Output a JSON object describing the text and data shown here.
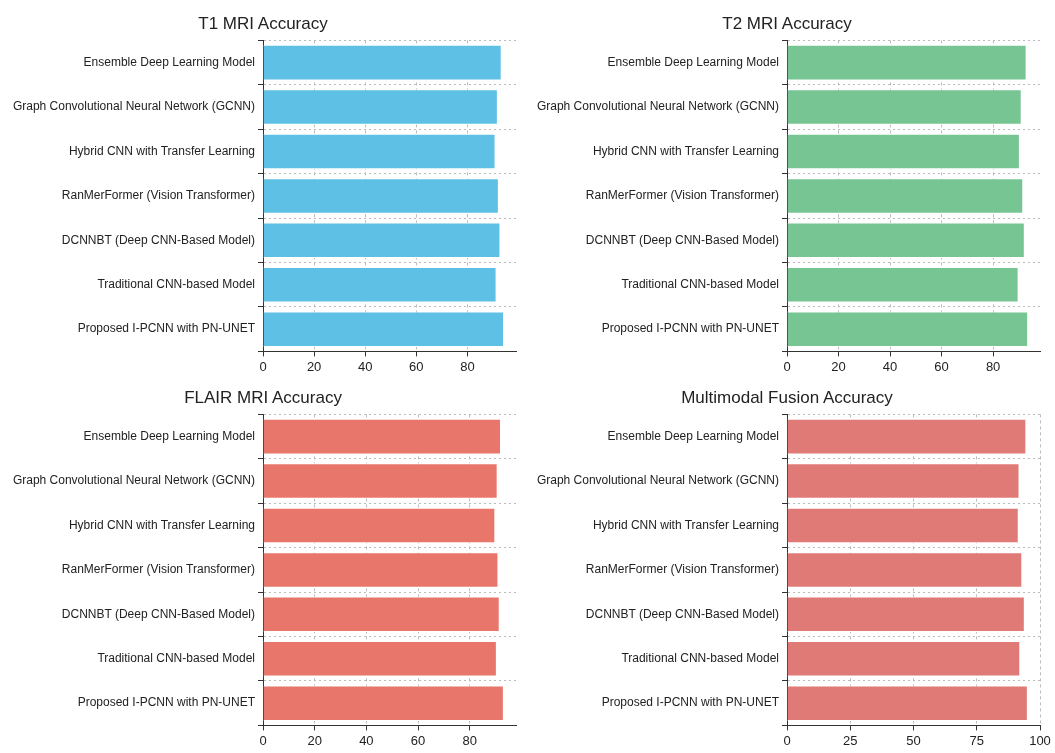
{
  "chart_data": [
    {
      "type": "bar",
      "orientation": "horizontal",
      "title": "T1 MRI Accuracy",
      "categories": [
        "Ensemble Deep Learning Model",
        "Graph Convolutional Neural Network (GCNN)",
        "Hybrid CNN with Transfer Learning",
        "RanMerFormer (Vision Transformer)",
        "DCNNBT (Deep CNN-Based Model)",
        "Traditional CNN-based Model",
        "Proposed I-PCNN with PN-UNET"
      ],
      "values": [
        93.4,
        91.9,
        91.0,
        92.3,
        92.9,
        91.4,
        94.3
      ],
      "color": "#5dc0e4",
      "xlim": [
        0,
        99
      ],
      "xticks": [
        0,
        20,
        40,
        60,
        80
      ],
      "grid": true
    },
    {
      "type": "bar",
      "orientation": "horizontal",
      "title": "T2 MRI Accuracy",
      "categories": [
        "Ensemble Deep Learning Model",
        "Graph Convolutional Neural Network (GCNN)",
        "Hybrid CNN with Transfer Learning",
        "RanMerFormer (Vision Transformer)",
        "DCNNBT (Deep CNN-Based Model)",
        "Traditional CNN-based Model",
        "Proposed I-PCNN with PN-UNET"
      ],
      "values": [
        93.0,
        91.1,
        90.4,
        91.7,
        92.3,
        89.9,
        93.6
      ],
      "color": "#77c592",
      "xlim": [
        0,
        98.2
      ],
      "xticks": [
        0,
        20,
        40,
        60,
        80
      ],
      "grid": true
    },
    {
      "type": "bar",
      "orientation": "horizontal",
      "title": "FLAIR MRI Accuracy",
      "categories": [
        "Ensemble Deep Learning Model",
        "Graph Convolutional Neural Network (GCNN)",
        "Hybrid CNN with Transfer Learning",
        "RanMerFormer (Vision Transformer)",
        "DCNNBT (Deep CNN-Based Model)",
        "Traditional CNN-based Model",
        "Proposed I-PCNN with PN-UNET"
      ],
      "values": [
        92.1,
        90.8,
        89.9,
        91.1,
        91.6,
        90.5,
        93.2
      ],
      "color": "#e8766a",
      "xlim": [
        0,
        97.9
      ],
      "xticks": [
        0,
        20,
        40,
        60,
        80
      ],
      "grid": true
    },
    {
      "type": "bar",
      "orientation": "horizontal",
      "title": "Multimodal Fusion Accuracy",
      "categories": [
        "Ensemble Deep Learning Model",
        "Graph Convolutional Neural Network (GCNN)",
        "Hybrid CNN with Transfer Learning",
        "RanMerFormer (Vision Transformer)",
        "DCNNBT (Deep CNN-Based Model)",
        "Traditional CNN-based Model",
        "Proposed I-PCNN with PN-UNET"
      ],
      "values": [
        94.6,
        91.9,
        91.6,
        93.0,
        94.0,
        92.2,
        95.2
      ],
      "color": "#e07a77",
      "xlim": [
        0,
        100
      ],
      "xticks": [
        0,
        25,
        50,
        75,
        100
      ],
      "grid": true
    }
  ]
}
